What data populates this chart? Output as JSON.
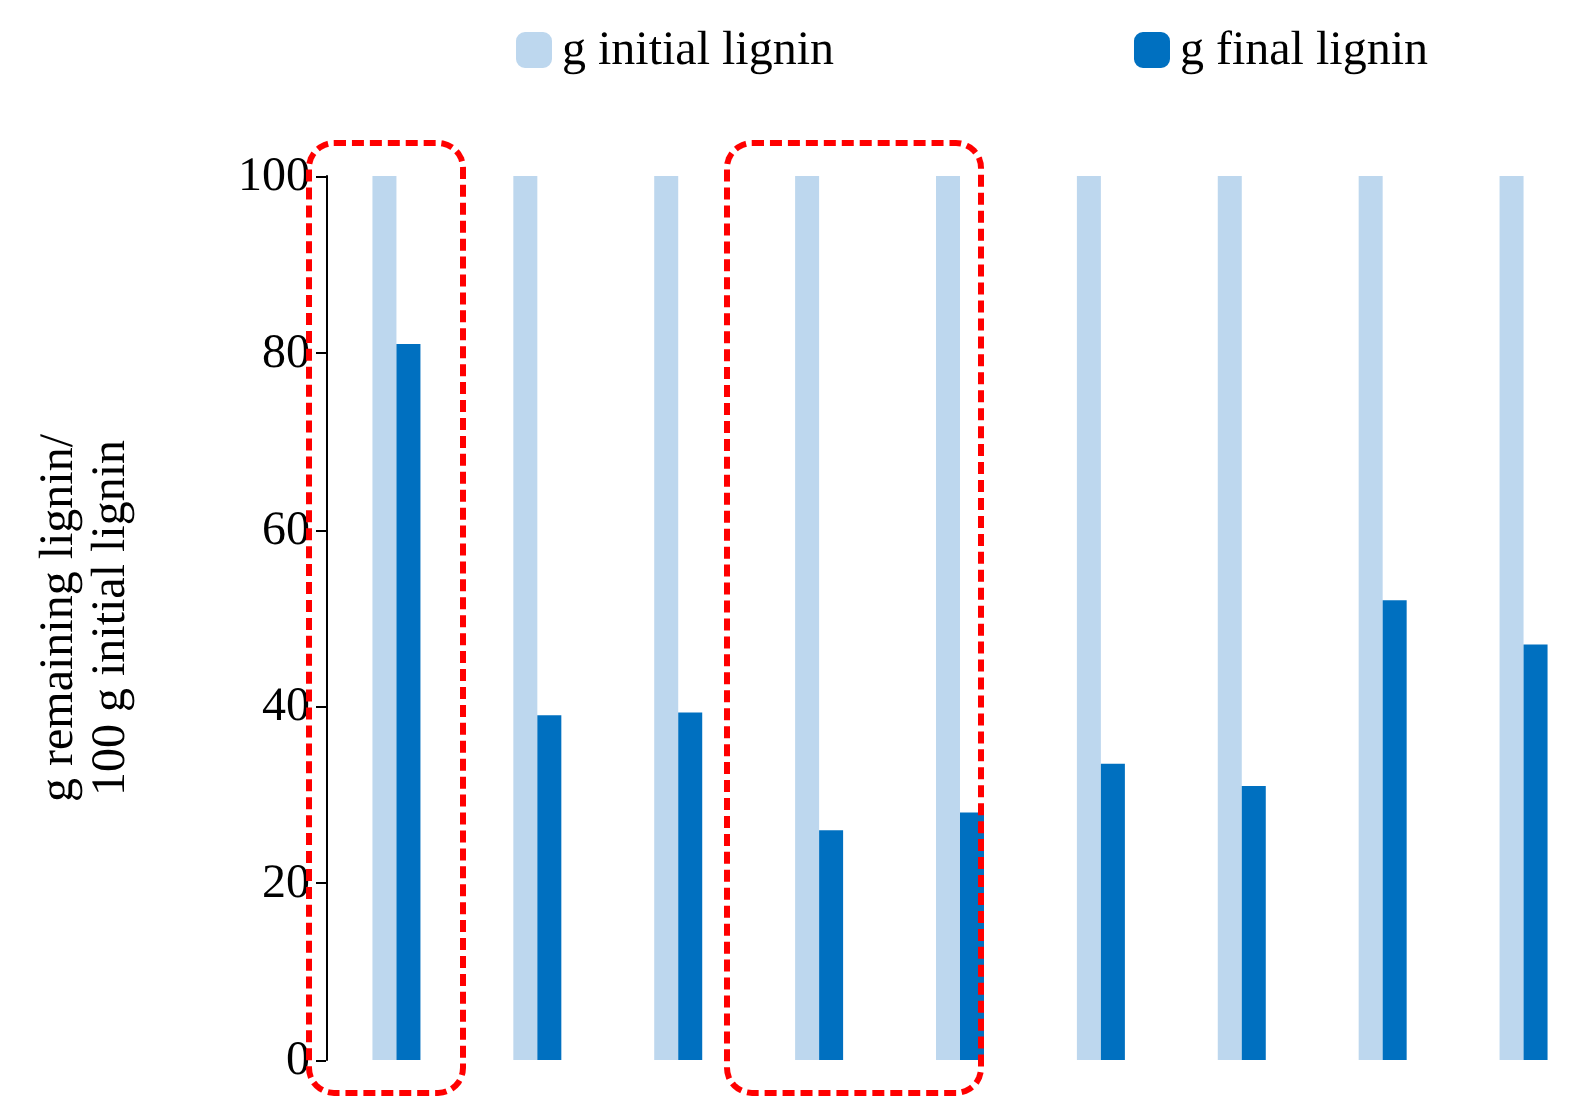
{
  "chart_data": {
    "type": "bar",
    "ylabel": "g remaining lignin/ 100 g initial lignin",
    "categories": [
      null,
      null,
      null,
      null,
      null,
      null,
      null,
      null,
      null
    ],
    "series": [
      {
        "name": "g initial lignin",
        "color": "#bdd7ee",
        "values": [
          100,
          100,
          100,
          100,
          100,
          100,
          100,
          100,
          100
        ]
      },
      {
        "name": "g final lignin",
        "color": "#0070c0",
        "values": [
          81,
          39,
          39.3,
          26,
          28,
          33.5,
          31,
          52,
          47
        ]
      }
    ],
    "ylim": [
      0,
      100
    ],
    "yticks": [
      0,
      20,
      40,
      60,
      80,
      100
    ],
    "grid": false,
    "legend": "top"
  }
}
